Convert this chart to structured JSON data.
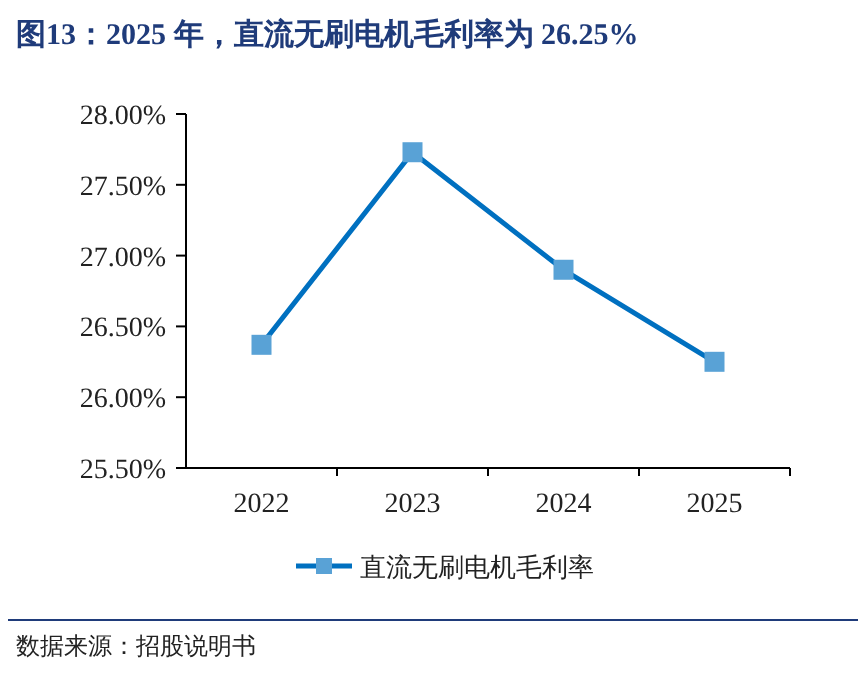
{
  "chart_data": {
    "type": "line",
    "title": "图13：2025 年，直流无刷电机毛利率为 26.25%",
    "categories": [
      "2022",
      "2023",
      "2024",
      "2025"
    ],
    "series": [
      {
        "name": "直流无刷电机毛利率",
        "color": "#0070c0",
        "values": [
          26.37,
          27.73,
          26.9,
          26.25
        ]
      }
    ],
    "ylim": [
      25.5,
      28
    ],
    "yticks": [
      {
        "value": 25.5,
        "label": "25.50%"
      },
      {
        "value": 26,
        "label": "26.00%"
      },
      {
        "value": 26.5,
        "label": "26.50%"
      },
      {
        "value": 27,
        "label": "27.00%"
      },
      {
        "value": 27.5,
        "label": "27.50%"
      },
      {
        "value": 28,
        "label": "28.00%"
      }
    ],
    "marker": "square",
    "legend": "bottom",
    "grid": false,
    "annotations": [
      "数据来源：招股说明书"
    ]
  }
}
